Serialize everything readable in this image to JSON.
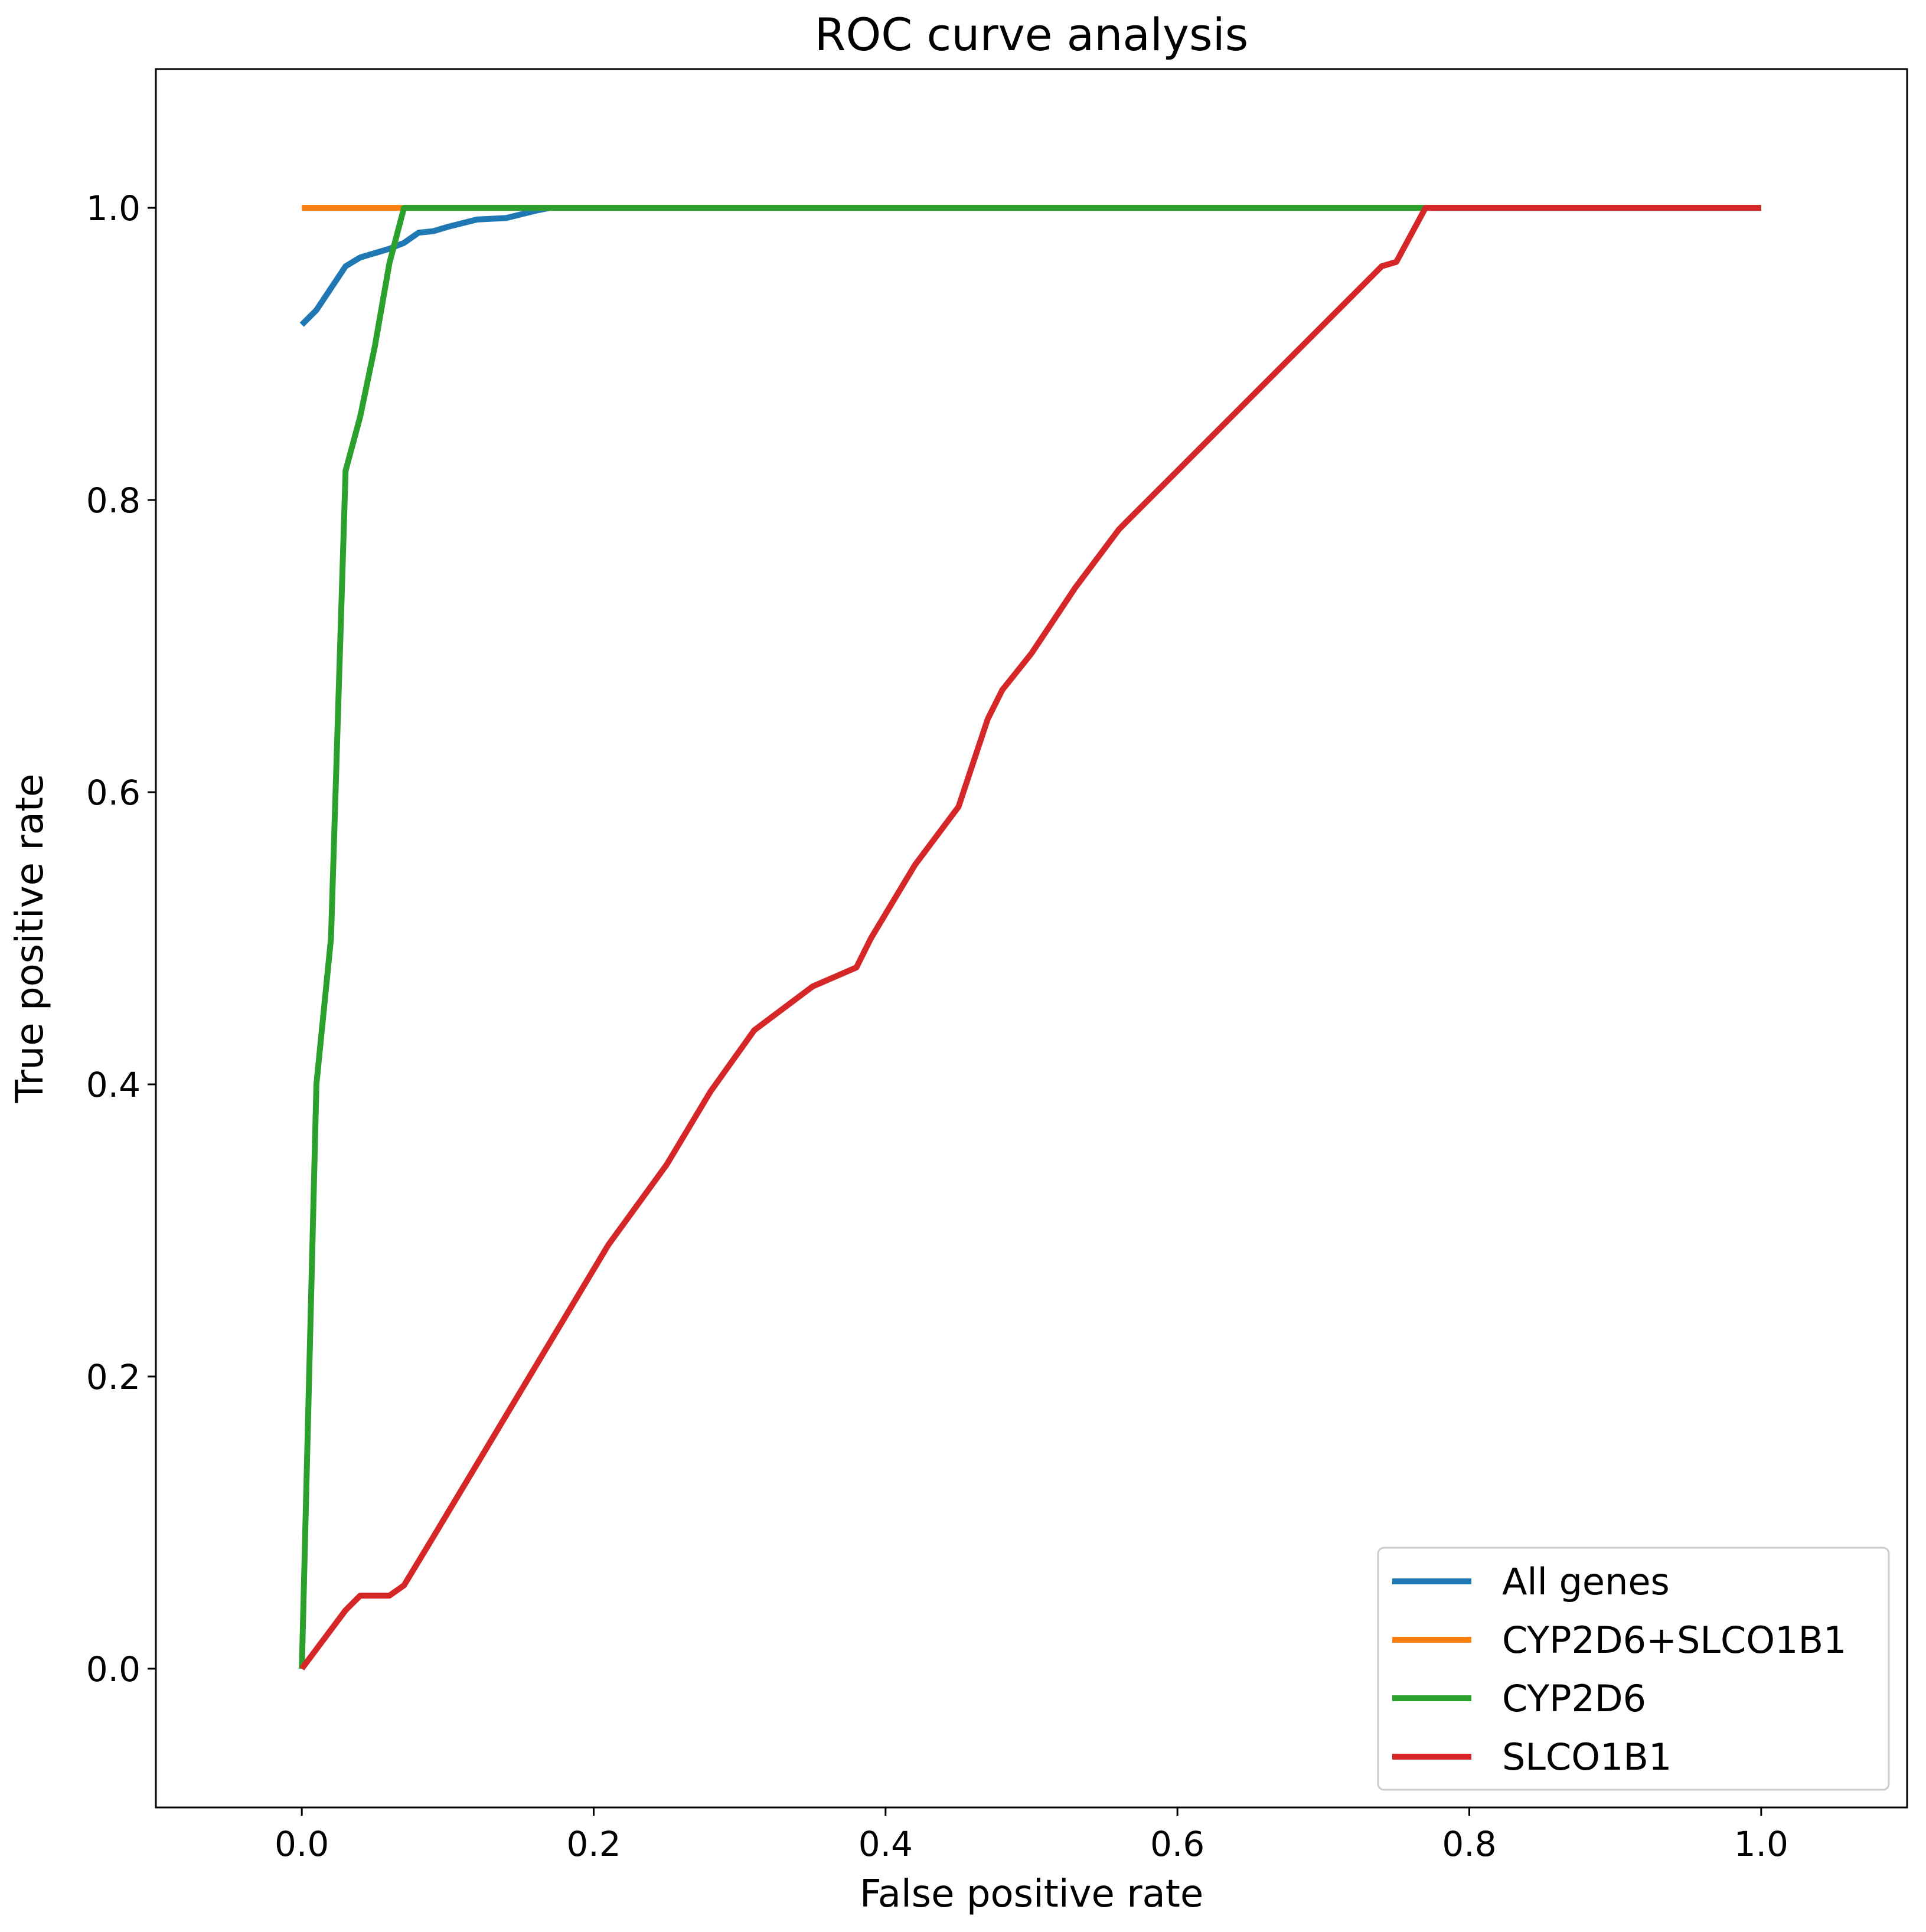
{
  "chart_data": {
    "type": "line",
    "title": "ROC curve analysis",
    "xlabel": "False positive rate",
    "ylabel": "True positive rate",
    "xlim": [
      -0.1,
      1.1
    ],
    "ylim": [
      -0.095,
      1.095
    ],
    "xticks": [
      0.0,
      0.2,
      0.4,
      0.6,
      0.8,
      1.0
    ],
    "xtick_labels": [
      "0.0",
      "0.2",
      "0.4",
      "0.6",
      "0.8",
      "1.0"
    ],
    "yticks": [
      0.0,
      0.2,
      0.4,
      0.6,
      0.8,
      1.0
    ],
    "ytick_labels": [
      "0.0",
      "0.2",
      "0.4",
      "0.6",
      "0.8",
      "1.0"
    ],
    "grid": false,
    "legend_position": "bottom-right",
    "series": [
      {
        "name": "All genes",
        "color": "#1f77b4",
        "x": [
          0.0,
          0.01,
          0.02,
          0.03,
          0.04,
          0.06,
          0.07,
          0.08,
          0.09,
          0.1,
          0.12,
          0.14,
          0.16,
          0.17,
          1.0
        ],
        "y": [
          0.92,
          0.93,
          0.945,
          0.96,
          0.966,
          0.972,
          0.976,
          0.983,
          0.984,
          0.987,
          0.992,
          0.993,
          0.998,
          1.0,
          1.0
        ]
      },
      {
        "name": "CYP2D6+SLCO1B1",
        "color": "#ff7f0e",
        "x": [
          0.0,
          1.0
        ],
        "y": [
          1.0,
          1.0
        ]
      },
      {
        "name": "CYP2D6",
        "color": "#2ca02c",
        "x": [
          0.0,
          0.01,
          0.02,
          0.03,
          0.04,
          0.05,
          0.06,
          0.07,
          1.0
        ],
        "y": [
          0.0,
          0.4,
          0.5,
          0.82,
          0.857,
          0.905,
          0.962,
          1.0,
          1.0
        ]
      },
      {
        "name": "SLCO1B1",
        "color": "#d62728",
        "x": [
          0.0,
          0.03,
          0.04,
          0.06,
          0.07,
          0.09,
          0.12,
          0.15,
          0.18,
          0.21,
          0.25,
          0.28,
          0.31,
          0.35,
          0.38,
          0.39,
          0.42,
          0.45,
          0.46,
          0.47,
          0.48,
          0.5,
          0.53,
          0.56,
          0.57,
          0.6,
          0.64,
          0.68,
          0.72,
          0.74,
          0.75,
          0.77,
          1.0
        ],
        "y": [
          0.0,
          0.04,
          0.05,
          0.05,
          0.057,
          0.09,
          0.14,
          0.19,
          0.24,
          0.29,
          0.345,
          0.395,
          0.437,
          0.467,
          0.48,
          0.5,
          0.55,
          0.59,
          0.62,
          0.65,
          0.67,
          0.695,
          0.74,
          0.78,
          0.79,
          0.82,
          0.86,
          0.9,
          0.94,
          0.96,
          0.963,
          1.0,
          1.0
        ]
      }
    ]
  }
}
